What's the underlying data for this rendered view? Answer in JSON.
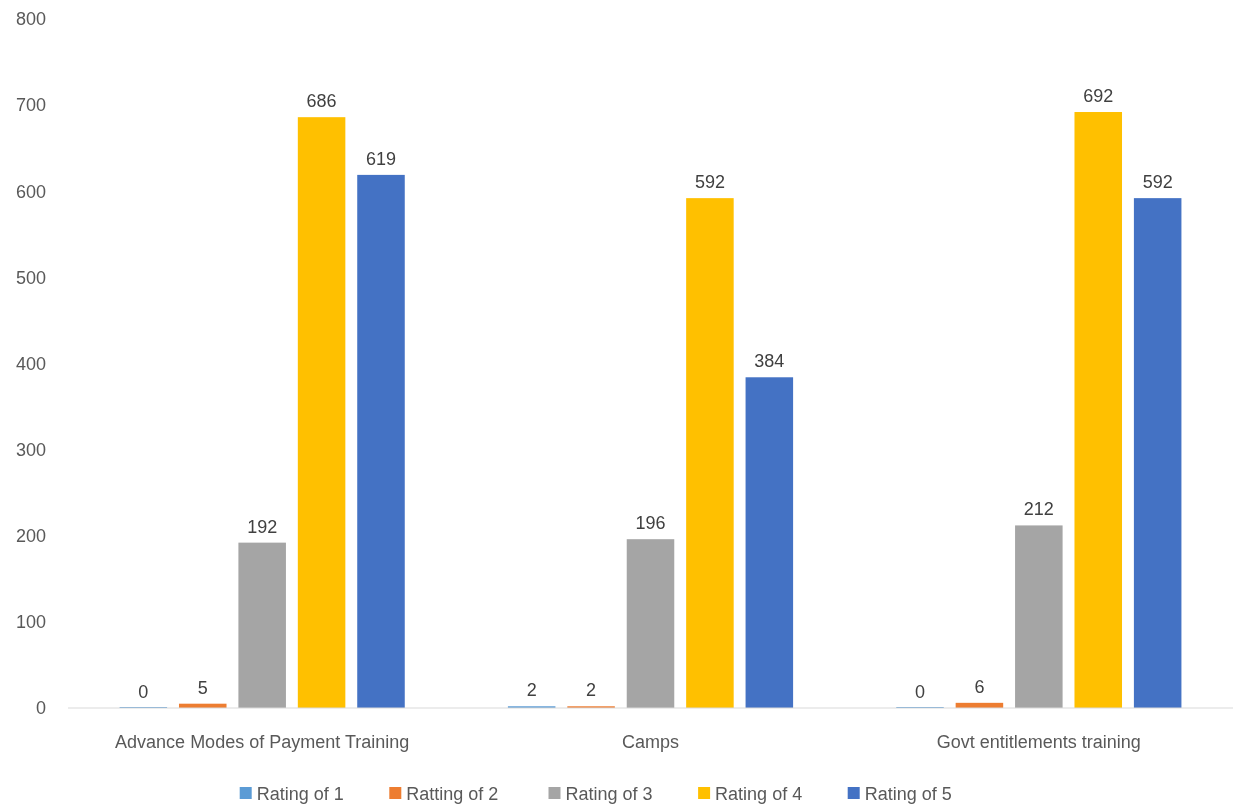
{
  "chart_data": {
    "type": "bar",
    "categories": [
      "Advance Modes of Payment Training",
      "Camps",
      "Govt entitlements training"
    ],
    "series": [
      {
        "name": "Rating of 1",
        "color": "#5b9bd5",
        "values": [
          0,
          2,
          0
        ]
      },
      {
        "name": "Ratting of 2",
        "color": "#ed7d31",
        "values": [
          5,
          2,
          6
        ]
      },
      {
        "name": "Rating of 3",
        "color": "#a5a5a5",
        "values": [
          192,
          196,
          212
        ]
      },
      {
        "name": "Rating of 4",
        "color": "#ffc000",
        "values": [
          686,
          592,
          692
        ]
      },
      {
        "name": "Rating of 5",
        "color": "#4472c4",
        "values": [
          619,
          384,
          592
        ]
      }
    ],
    "ylim": [
      0,
      800
    ],
    "yticks": [
      0,
      100,
      200,
      300,
      400,
      500,
      600,
      700,
      800
    ],
    "grid": false,
    "legend": "bottom",
    "data_labels": true
  }
}
